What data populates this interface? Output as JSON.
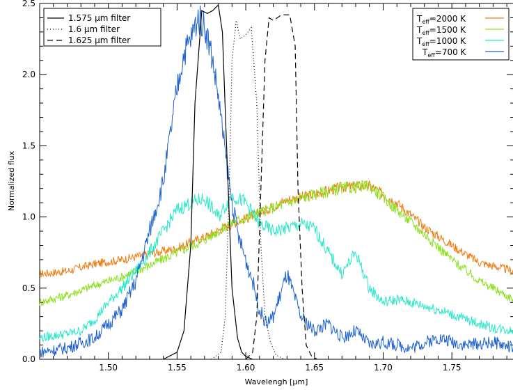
{
  "chart_data": {
    "type": "line",
    "xlabel": "Wavelengh [μm]",
    "ylabel": "Normalized flux",
    "xlim": [
      1.45,
      1.795
    ],
    "ylim": [
      0.0,
      2.5
    ],
    "x_ticks": [
      1.5,
      1.55,
      1.6,
      1.65,
      1.7,
      1.75
    ],
    "x_tick_labels": [
      "1.50",
      "1.55",
      "1.60",
      "1.65",
      "1.70",
      "1.75"
    ],
    "y_ticks": [
      0.0,
      0.5,
      1.0,
      1.5,
      2.0,
      2.5
    ],
    "y_tick_labels": [
      "0.0",
      "0.5",
      "1.0",
      "1.5",
      "2.0",
      "2.5"
    ],
    "filters": [
      {
        "name": "1.575 μm filter",
        "style": "solid",
        "x": [
          1.54,
          1.55,
          1.555,
          1.56,
          1.563,
          1.568,
          1.572,
          1.576,
          1.58,
          1.583,
          1.586,
          1.59,
          1.594,
          1.597,
          1.6,
          1.605
        ],
        "y": [
          0.0,
          0.05,
          0.2,
          0.8,
          1.8,
          2.45,
          2.43,
          2.45,
          2.49,
          2.3,
          1.5,
          0.5,
          0.15,
          0.05,
          0.02,
          0.0
        ]
      },
      {
        "name": "1.6 μm filter",
        "style": "dotted",
        "x": [
          1.575,
          1.582,
          1.585,
          1.588,
          1.59,
          1.593,
          1.596,
          1.6,
          1.604,
          1.608,
          1.611,
          1.614,
          1.618,
          1.622,
          1.628
        ],
        "y": [
          0.0,
          0.05,
          0.3,
          1.2,
          2.1,
          2.38,
          2.25,
          2.28,
          2.33,
          1.8,
          0.8,
          0.3,
          0.12,
          0.03,
          0.0
        ]
      },
      {
        "name": "1.625 μm filter",
        "style": "dashed",
        "x": [
          1.6,
          1.605,
          1.608,
          1.611,
          1.614,
          1.617,
          1.62,
          1.626,
          1.632,
          1.636,
          1.638,
          1.641,
          1.644,
          1.648,
          1.652
        ],
        "y": [
          0.0,
          0.05,
          0.3,
          1.2,
          2.1,
          2.4,
          2.38,
          2.42,
          2.42,
          2.2,
          1.2,
          0.5,
          0.1,
          0.02,
          0.0
        ]
      }
    ],
    "series": [
      {
        "name": "Teff=2000 K",
        "color": "#f07b10",
        "x": [
          1.45,
          1.47,
          1.49,
          1.51,
          1.53,
          1.55,
          1.57,
          1.59,
          1.61,
          1.63,
          1.65,
          1.67,
          1.69,
          1.71,
          1.73,
          1.75,
          1.77,
          1.795
        ],
        "y": [
          0.6,
          0.62,
          0.67,
          0.7,
          0.74,
          0.78,
          0.86,
          0.95,
          1.03,
          1.12,
          1.16,
          1.21,
          1.22,
          1.1,
          0.93,
          0.8,
          0.68,
          0.62
        ]
      },
      {
        "name": "Teff=1500 K",
        "color": "#8ce01c",
        "x": [
          1.45,
          1.47,
          1.49,
          1.51,
          1.53,
          1.55,
          1.57,
          1.59,
          1.61,
          1.63,
          1.65,
          1.67,
          1.69,
          1.71,
          1.73,
          1.75,
          1.77,
          1.795
        ],
        "y": [
          0.4,
          0.45,
          0.52,
          0.58,
          0.66,
          0.75,
          0.84,
          0.96,
          1.03,
          1.1,
          1.16,
          1.2,
          1.22,
          1.05,
          0.88,
          0.7,
          0.55,
          0.42
        ]
      },
      {
        "name": "Teff=1000 K",
        "color": "#28e8c8",
        "x": [
          1.45,
          1.47,
          1.48,
          1.49,
          1.5,
          1.51,
          1.52,
          1.53,
          1.54,
          1.55,
          1.56,
          1.57,
          1.58,
          1.59,
          1.6,
          1.61,
          1.62,
          1.63,
          1.64,
          1.65,
          1.66,
          1.67,
          1.68,
          1.69,
          1.7,
          1.71,
          1.72,
          1.74,
          1.76,
          1.78,
          1.795
        ],
        "y": [
          0.15,
          0.18,
          0.2,
          0.28,
          0.4,
          0.5,
          0.62,
          0.75,
          0.9,
          1.05,
          1.1,
          1.13,
          1.0,
          1.15,
          1.1,
          0.95,
          0.9,
          0.92,
          0.95,
          0.92,
          0.75,
          0.6,
          0.75,
          0.5,
          0.4,
          0.42,
          0.4,
          0.35,
          0.28,
          0.22,
          0.2
        ]
      },
      {
        "name": "Teff=700 K",
        "color": "#1c5fd0",
        "x": [
          1.45,
          1.47,
          1.49,
          1.5,
          1.51,
          1.52,
          1.53,
          1.54,
          1.55,
          1.555,
          1.56,
          1.565,
          1.57,
          1.575,
          1.58,
          1.585,
          1.59,
          1.595,
          1.6,
          1.605,
          1.61,
          1.615,
          1.62,
          1.63,
          1.64,
          1.65,
          1.66,
          1.67,
          1.68,
          1.69,
          1.7,
          1.72,
          1.74,
          1.76,
          1.78,
          1.795
        ],
        "y": [
          0.05,
          0.08,
          0.15,
          0.25,
          0.35,
          0.55,
          0.9,
          1.25,
          1.9,
          2.15,
          2.25,
          2.4,
          2.35,
          2.15,
          1.85,
          1.45,
          1.1,
          0.85,
          0.7,
          0.55,
          0.35,
          0.25,
          0.3,
          0.6,
          0.3,
          0.2,
          0.25,
          0.15,
          0.2,
          0.1,
          0.12,
          0.08,
          0.15,
          0.1,
          0.12,
          0.08
        ]
      }
    ],
    "legend_left": {
      "placement": "top-left"
    },
    "legend_right": {
      "placement": "top-right"
    }
  }
}
